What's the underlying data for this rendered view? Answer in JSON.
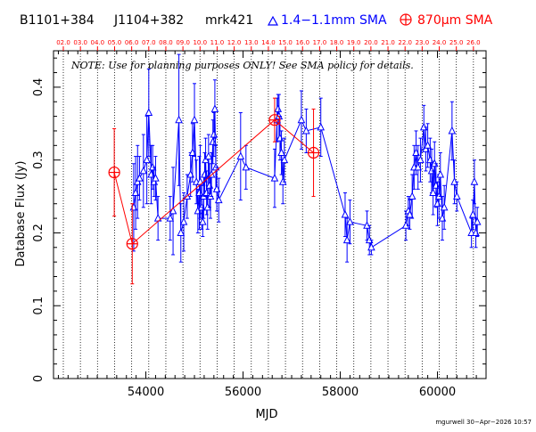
{
  "header": {
    "sources": [
      "B1101+384",
      "J1104+382",
      "mrk421"
    ],
    "legend": [
      {
        "symbol": "triangle",
        "label": "1.4−1.1mm SMA",
        "color": "#0000ff"
      },
      {
        "symbol": "circle-plus",
        "label": "870μm SMA",
        "color": "#ff0000"
      }
    ]
  },
  "note": "NOTE: Use for planning purposes ONLY!  See SMA policy for details.",
  "footer": "mgurwell 30−Apr−2026 10:57",
  "chart_data": {
    "type": "scatter",
    "xlabel": "MJD",
    "ylabel": "Database Flux (Jy)",
    "xlim": [
      52100,
      61000
    ],
    "ylim": [
      0,
      0.45
    ],
    "x_ticks": [
      "54000",
      "56000",
      "58000",
      "60000"
    ],
    "y_ticks": [
      "0",
      "0.1",
      "0.2",
      "0.3",
      "0.4"
    ],
    "top_axis_labels": [
      "02.0",
      "03.0",
      "04.0",
      "05.0",
      "06.0",
      "07.0",
      "08.0",
      "09.0",
      "10.0",
      "11.0",
      "12.0",
      "13.0",
      "14.0",
      "15.0",
      "16.0",
      "17.0",
      "18.0",
      "19.0",
      "20.0",
      "21.0",
      "22.0",
      "23.0",
      "24.0",
      "25.0",
      "26.0"
    ],
    "grid": "vertical dotted lines at each year",
    "series": [
      {
        "name": "1.4−1.1mm SMA",
        "color": "#0000ff",
        "marker": "triangle",
        "points": [
          {
            "x": 53750,
            "y": 0.235,
            "err": 0.06
          },
          {
            "x": 53790,
            "y": 0.255,
            "err": 0.05
          },
          {
            "x": 53830,
            "y": 0.27,
            "err": 0.05
          },
          {
            "x": 53870,
            "y": 0.275,
            "err": 0.03
          },
          {
            "x": 53950,
            "y": 0.285,
            "err": 0.05
          },
          {
            "x": 54020,
            "y": 0.3,
            "err": 0.06
          },
          {
            "x": 54060,
            "y": 0.365,
            "err": 0.06
          },
          {
            "x": 54110,
            "y": 0.28,
            "err": 0.04
          },
          {
            "x": 54140,
            "y": 0.29,
            "err": 0.03
          },
          {
            "x": 54170,
            "y": 0.27,
            "err": 0.02
          },
          {
            "x": 54200,
            "y": 0.275,
            "err": 0.03
          },
          {
            "x": 54250,
            "y": 0.22,
            "err": 0.03
          },
          {
            "x": 54500,
            "y": 0.22,
            "err": 0.03
          },
          {
            "x": 54560,
            "y": 0.23,
            "err": 0.06
          },
          {
            "x": 54680,
            "y": 0.355,
            "err": 0.09
          },
          {
            "x": 54720,
            "y": 0.2,
            "err": 0.04
          },
          {
            "x": 54780,
            "y": 0.215,
            "err": 0.04
          },
          {
            "x": 54850,
            "y": 0.25,
            "err": 0.03
          },
          {
            "x": 54920,
            "y": 0.28,
            "err": 0.03
          },
          {
            "x": 54960,
            "y": 0.31,
            "err": 0.04
          },
          {
            "x": 55000,
            "y": 0.355,
            "err": 0.05
          },
          {
            "x": 55040,
            "y": 0.27,
            "err": 0.03
          },
          {
            "x": 55070,
            "y": 0.23,
            "err": 0.03
          },
          {
            "x": 55100,
            "y": 0.255,
            "err": 0.05
          },
          {
            "x": 55120,
            "y": 0.27,
            "err": 0.05
          },
          {
            "x": 55150,
            "y": 0.235,
            "err": 0.03
          },
          {
            "x": 55170,
            "y": 0.215,
            "err": 0.02
          },
          {
            "x": 55190,
            "y": 0.25,
            "err": 0.03
          },
          {
            "x": 55210,
            "y": 0.28,
            "err": 0.03
          },
          {
            "x": 55230,
            "y": 0.3,
            "err": 0.03
          },
          {
            "x": 55250,
            "y": 0.255,
            "err": 0.03
          },
          {
            "x": 55270,
            "y": 0.235,
            "err": 0.03
          },
          {
            "x": 55290,
            "y": 0.305,
            "err": 0.03
          },
          {
            "x": 55310,
            "y": 0.265,
            "err": 0.03
          },
          {
            "x": 55330,
            "y": 0.25,
            "err": 0.03
          },
          {
            "x": 55350,
            "y": 0.28,
            "err": 0.03
          },
          {
            "x": 55380,
            "y": 0.325,
            "err": 0.03
          },
          {
            "x": 55400,
            "y": 0.335,
            "err": 0.03
          },
          {
            "x": 55420,
            "y": 0.37,
            "err": 0.04
          },
          {
            "x": 55440,
            "y": 0.29,
            "err": 0.03
          },
          {
            "x": 55460,
            "y": 0.26,
            "err": 0.03
          },
          {
            "x": 55500,
            "y": 0.245,
            "err": 0.03
          },
          {
            "x": 55950,
            "y": 0.305,
            "err": 0.06
          },
          {
            "x": 56060,
            "y": 0.29,
            "err": 0.03
          },
          {
            "x": 56650,
            "y": 0.275,
            "err": 0.04
          },
          {
            "x": 56700,
            "y": 0.355,
            "err": 0.03
          },
          {
            "x": 56720,
            "y": 0.37,
            "err": 0.02
          },
          {
            "x": 56740,
            "y": 0.36,
            "err": 0.03
          },
          {
            "x": 56760,
            "y": 0.33,
            "err": 0.03
          },
          {
            "x": 56790,
            "y": 0.31,
            "err": 0.03
          },
          {
            "x": 56820,
            "y": 0.27,
            "err": 0.03
          },
          {
            "x": 56850,
            "y": 0.3,
            "err": 0.03
          },
          {
            "x": 57200,
            "y": 0.355,
            "err": 0.04
          },
          {
            "x": 57300,
            "y": 0.34,
            "err": 0.03
          },
          {
            "x": 57600,
            "y": 0.345,
            "err": 0.04
          },
          {
            "x": 58100,
            "y": 0.225,
            "err": 0.03
          },
          {
            "x": 58140,
            "y": 0.19,
            "err": 0.03
          },
          {
            "x": 58200,
            "y": 0.215,
            "err": 0.03
          },
          {
            "x": 58550,
            "y": 0.21,
            "err": 0.02
          },
          {
            "x": 58600,
            "y": 0.19,
            "err": 0.02
          },
          {
            "x": 58640,
            "y": 0.18,
            "err": 0.01
          },
          {
            "x": 59350,
            "y": 0.21,
            "err": 0.02
          },
          {
            "x": 59400,
            "y": 0.23,
            "err": 0.02
          },
          {
            "x": 59430,
            "y": 0.225,
            "err": 0.02
          },
          {
            "x": 59480,
            "y": 0.25,
            "err": 0.03
          },
          {
            "x": 59520,
            "y": 0.29,
            "err": 0.03
          },
          {
            "x": 59560,
            "y": 0.31,
            "err": 0.03
          },
          {
            "x": 59600,
            "y": 0.29,
            "err": 0.03
          },
          {
            "x": 59650,
            "y": 0.3,
            "err": 0.03
          },
          {
            "x": 59720,
            "y": 0.345,
            "err": 0.03
          },
          {
            "x": 59760,
            "y": 0.315,
            "err": 0.03
          },
          {
            "x": 59800,
            "y": 0.32,
            "err": 0.03
          },
          {
            "x": 59850,
            "y": 0.3,
            "err": 0.03
          },
          {
            "x": 59880,
            "y": 0.285,
            "err": 0.03
          },
          {
            "x": 59910,
            "y": 0.255,
            "err": 0.03
          },
          {
            "x": 59940,
            "y": 0.295,
            "err": 0.03
          },
          {
            "x": 59970,
            "y": 0.265,
            "err": 0.03
          },
          {
            "x": 60000,
            "y": 0.24,
            "err": 0.03
          },
          {
            "x": 60030,
            "y": 0.25,
            "err": 0.03
          },
          {
            "x": 60060,
            "y": 0.28,
            "err": 0.03
          },
          {
            "x": 60100,
            "y": 0.22,
            "err": 0.03
          },
          {
            "x": 60140,
            "y": 0.235,
            "err": 0.03
          },
          {
            "x": 60300,
            "y": 0.34,
            "err": 0.04
          },
          {
            "x": 60350,
            "y": 0.27,
            "err": 0.03
          },
          {
            "x": 60400,
            "y": 0.25,
            "err": 0.02
          },
          {
            "x": 60700,
            "y": 0.2,
            "err": 0.02
          },
          {
            "x": 60730,
            "y": 0.225,
            "err": 0.02
          },
          {
            "x": 60760,
            "y": 0.27,
            "err": 0.03
          },
          {
            "x": 60790,
            "y": 0.2,
            "err": 0.02
          },
          {
            "x": 60820,
            "y": 0.215,
            "err": 0.02
          }
        ]
      },
      {
        "name": "870μm SMA",
        "color": "#ff0000",
        "marker": "circle-plus",
        "points": [
          {
            "x": 53350,
            "y": 0.283,
            "err": 0.06
          },
          {
            "x": 53720,
            "y": 0.185,
            "err": 0.055
          },
          {
            "x": 56650,
            "y": 0.355,
            "err": 0.03
          },
          {
            "x": 57450,
            "y": 0.31,
            "err": 0.06
          }
        ]
      }
    ]
  }
}
